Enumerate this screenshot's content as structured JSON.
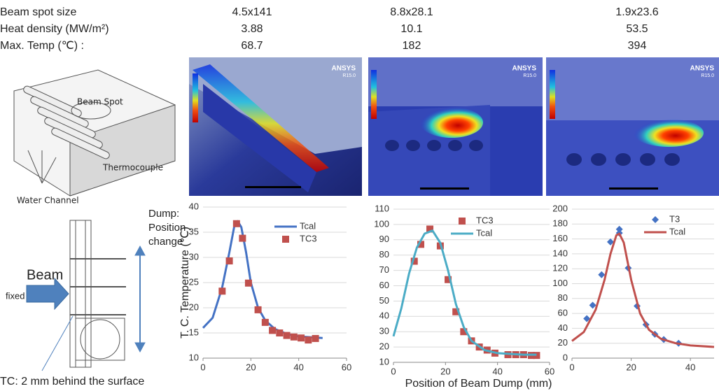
{
  "table": {
    "rows": [
      [
        "Beam spot size",
        "4.5x141",
        "8.8x28.1",
        "1.9x23.6"
      ],
      [
        "Heat density (MW/m²)",
        "3.88",
        "10.1",
        "53.5"
      ],
      [
        "Max. Temp (℃) :",
        "68.7",
        "182",
        "394"
      ]
    ]
  },
  "images": [
    {
      "logo": "ANSYS",
      "version": "R15.0"
    },
    {
      "logo": "ANSYS",
      "version": "R15.0"
    },
    {
      "logo": "ANSYS",
      "version": "R15.0"
    }
  ],
  "diagram": {
    "labels": [
      "Beam Spot",
      "Thermocouple",
      "Water Channel"
    ],
    "dump_label": [
      "Dump:",
      "Position",
      "change"
    ],
    "beam": "Beam",
    "fixed": "fixed",
    "caption": "TC: 2 mm behind the surface"
  },
  "chart_data": [
    {
      "type": "line",
      "y_label": "T. C. Temperature (℃)",
      "xlim": [
        0,
        60
      ],
      "xticks": [
        0,
        20,
        40,
        60
      ],
      "ylim": [
        10,
        40
      ],
      "yticks": [
        10,
        15,
        20,
        25,
        30,
        35,
        40
      ],
      "grid": true,
      "legend": "upper right",
      "series": [
        {
          "name": "Tcal",
          "color": "#4472c4",
          "x": [
            0,
            4,
            8,
            11,
            13,
            14.5,
            16,
            18,
            20,
            23,
            26,
            30,
            35,
            40,
            50
          ],
          "values": [
            16,
            18,
            24,
            31,
            36,
            37.2,
            36,
            31,
            25,
            20,
            17.5,
            15.8,
            14.8,
            14.3,
            14
          ]
        },
        {
          "name": "TC3",
          "color": "#c0504d",
          "marker": "square",
          "x": [
            8,
            11,
            14,
            16.5,
            19,
            23,
            26,
            29,
            32,
            35,
            38,
            41,
            44,
            47
          ],
          "values": [
            23.3,
            29.3,
            36.7,
            33.8,
            24.9,
            19.6,
            17.1,
            15.5,
            15,
            14.5,
            14.2,
            14,
            13.6,
            13.9
          ]
        }
      ]
    },
    {
      "type": "line",
      "x_label": "Position of Beam Dump (mm)",
      "xlim": [
        0,
        60
      ],
      "xticks": [
        0,
        20,
        40,
        60
      ],
      "ylim": [
        10,
        110
      ],
      "yticks": [
        10,
        20,
        30,
        40,
        50,
        60,
        70,
        80,
        90,
        100,
        110
      ],
      "grid": true,
      "legend": "upper right",
      "series": [
        {
          "name": "TC3",
          "color": "#c0504d",
          "marker": "square",
          "x": [
            8,
            10.5,
            14,
            18,
            21,
            24,
            27,
            30,
            33,
            36,
            39,
            44,
            47,
            50,
            53,
            55
          ],
          "values": [
            76,
            87,
            97,
            86,
            64,
            43,
            30,
            24,
            20,
            18,
            16,
            15,
            15,
            15,
            14.5,
            14.5
          ]
        },
        {
          "name": "Tcal",
          "color": "#4bacc6",
          "x": [
            0,
            3,
            6,
            9,
            12,
            15,
            18,
            21,
            24,
            27,
            30,
            35,
            40,
            50,
            55
          ],
          "values": [
            27,
            45,
            68,
            85,
            94,
            96,
            88,
            70,
            48,
            33,
            24,
            18,
            16,
            15,
            15
          ]
        }
      ]
    },
    {
      "type": "line",
      "xlim": [
        0,
        48
      ],
      "xticks": [
        0,
        20,
        40
      ],
      "ylim": [
        0,
        200
      ],
      "yticks": [
        0,
        20,
        40,
        60,
        80,
        100,
        120,
        140,
        160,
        180,
        200
      ],
      "grid": true,
      "legend": "upper right",
      "series": [
        {
          "name": "T3",
          "color": "#4472c4",
          "marker": "diamond",
          "x": [
            5,
            7,
            10,
            13,
            16,
            16,
            19,
            22,
            25,
            28,
            31,
            36
          ],
          "values": [
            53,
            71,
            112,
            156,
            168,
            173,
            121,
            70,
            45,
            32,
            25,
            20
          ]
        },
        {
          "name": "Tcal",
          "color": "#c0504d",
          "x": [
            0,
            4,
            8,
            11,
            13,
            15,
            16,
            17.5,
            20,
            23,
            26,
            30,
            35,
            40,
            48
          ],
          "values": [
            23,
            35,
            65,
            105,
            140,
            165,
            167,
            155,
            105,
            60,
            38,
            26,
            20,
            17,
            15
          ]
        }
      ]
    }
  ]
}
